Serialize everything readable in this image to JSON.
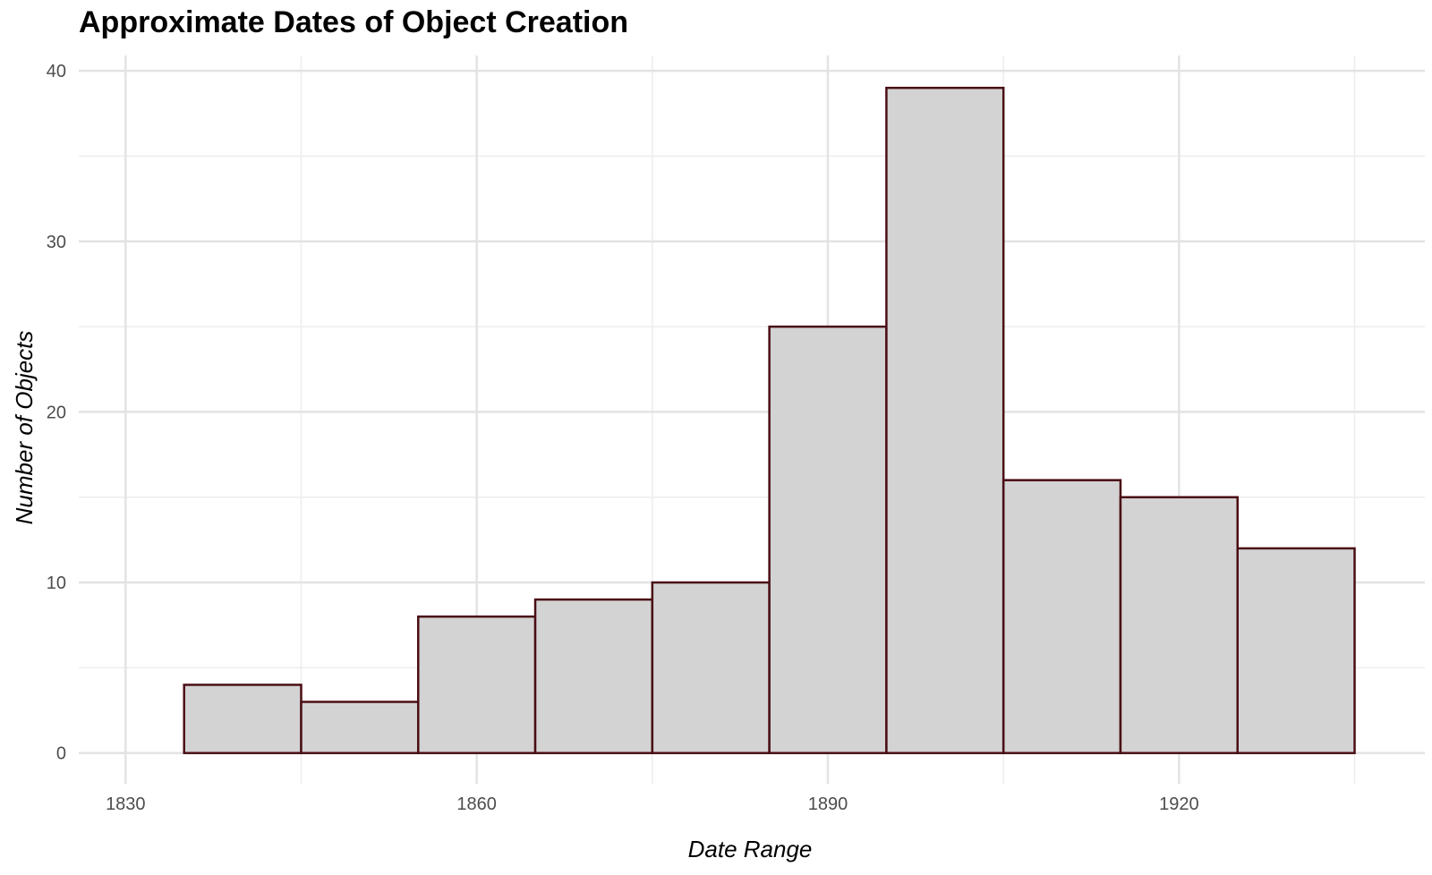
{
  "chart_data": {
    "type": "bar",
    "title": "Approximate Dates of Object Creation",
    "xlabel": "Date Range",
    "ylabel": "Number of Objects",
    "bins": [
      {
        "start": 1835,
        "end": 1845,
        "value": 4
      },
      {
        "start": 1845,
        "end": 1855,
        "value": 3
      },
      {
        "start": 1855,
        "end": 1865,
        "value": 8
      },
      {
        "start": 1865,
        "end": 1875,
        "value": 9
      },
      {
        "start": 1875,
        "end": 1885,
        "value": 10
      },
      {
        "start": 1885,
        "end": 1895,
        "value": 25
      },
      {
        "start": 1895,
        "end": 1905,
        "value": 39
      },
      {
        "start": 1905,
        "end": 1915,
        "value": 16
      },
      {
        "start": 1915,
        "end": 1925,
        "value": 15
      },
      {
        "start": 1925,
        "end": 1935,
        "value": 12
      }
    ],
    "x_ticks": [
      1830,
      1860,
      1890,
      1920
    ],
    "y_ticks": [
      0,
      10,
      20,
      30,
      40
    ],
    "xlim": [
      1826,
      1941
    ],
    "ylim": [
      -1.8,
      40.9
    ],
    "grid": true,
    "colors": {
      "bar_fill": "#d3d3d3",
      "bar_outline": "#4a0e14",
      "grid_major": "#e3e3e3",
      "grid_minor": "#ededed"
    }
  }
}
